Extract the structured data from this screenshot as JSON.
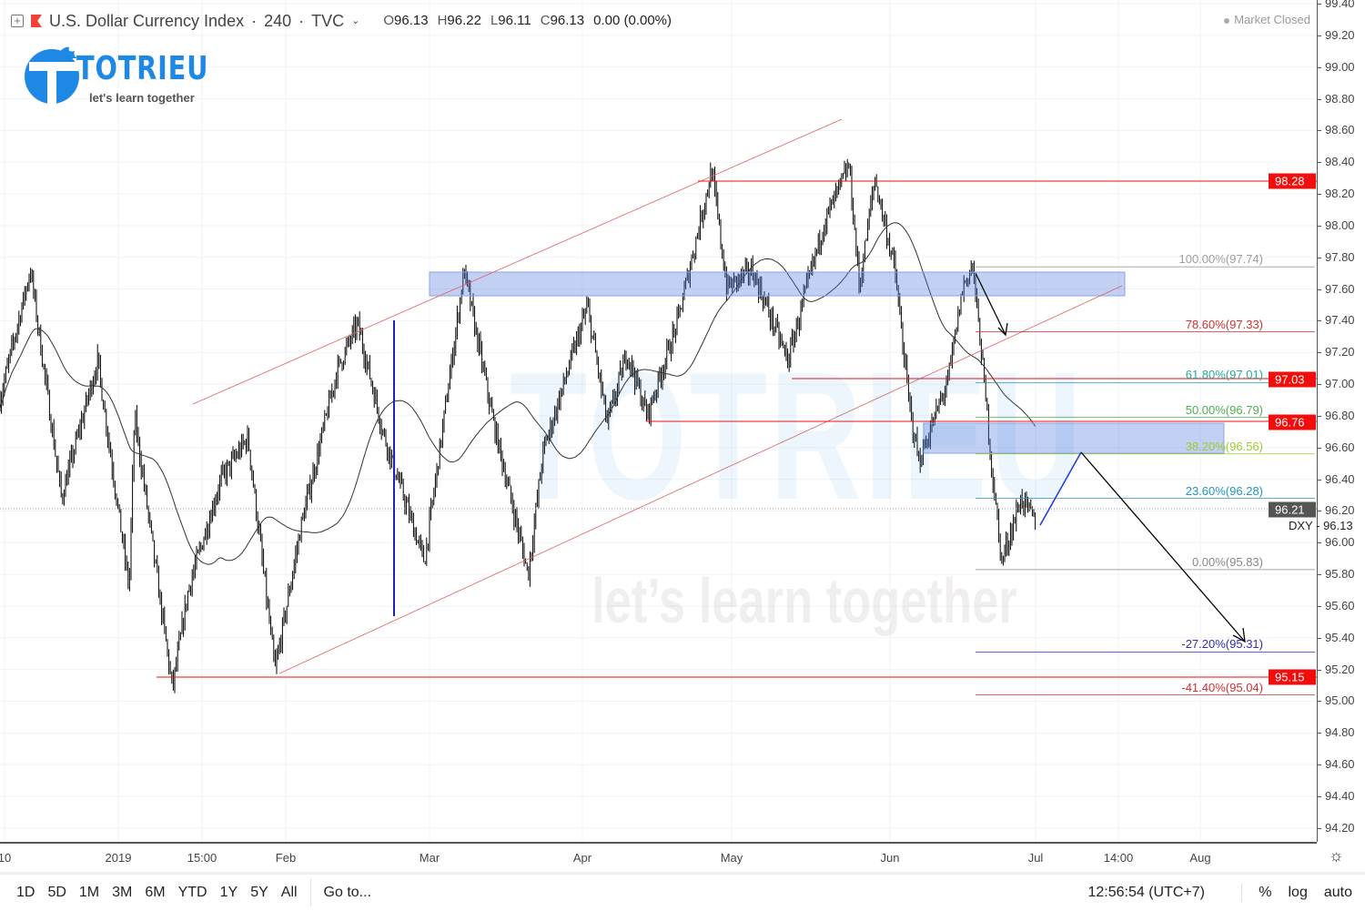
{
  "header": {
    "symbol": "U.S. Dollar Currency Index",
    "interval": "240",
    "exchange": "TVC",
    "dropdown_icon": "chevron-down-icon",
    "ohlc": {
      "o_label": "O",
      "o": "96.13",
      "h_label": "H",
      "h": "96.22",
      "l_label": "L",
      "l": "96.11",
      "c_label": "C",
      "c": "96.13",
      "change": "0.00 (0.00%)"
    }
  },
  "market_status": "Market Closed",
  "logo": {
    "brand": "TOTRIEU",
    "tagline": "let's learn together"
  },
  "watermark": {
    "brand": "TOTRIEU",
    "tagline": "let’s learn together"
  },
  "price_axis": {
    "ticks": [
      "99.40",
      "99.20",
      "99.00",
      "98.80",
      "98.60",
      "98.40",
      "98.20",
      "98.00",
      "97.80",
      "97.60",
      "97.40",
      "97.20",
      "97.00",
      "96.80",
      "96.60",
      "96.40",
      "96.20",
      "96.00",
      "95.80",
      "95.60",
      "95.40",
      "95.20",
      "95.00",
      "94.80",
      "94.60",
      "94.40",
      "94.20"
    ],
    "tags": [
      {
        "value": "98.28",
        "color": "#f20d0d"
      },
      {
        "value": "97.03",
        "color": "#f20d0d"
      },
      {
        "value": "96.76",
        "color": "#f20d0d"
      },
      {
        "value": "96.21",
        "color": "#555555"
      },
      {
        "value": "95.15",
        "color": "#f20d0d"
      }
    ],
    "symbol_label": "DXY",
    "last_price": "96.13"
  },
  "fib_levels": [
    {
      "label": "100.00%(97.74)",
      "price": 97.74,
      "color": "#9e9e9e"
    },
    {
      "label": "78.60%(97.33)",
      "price": 97.33,
      "color": "#d32f2f"
    },
    {
      "label": "61.80%(97.01)",
      "price": 97.01,
      "color": "#26a69a"
    },
    {
      "label": "50.00%(96.79)",
      "price": 96.79,
      "color": "#4caf50"
    },
    {
      "label": "38.20%(96.56)",
      "price": 96.56,
      "color": "#9ccc2e"
    },
    {
      "label": "23.60%(96.28)",
      "price": 96.28,
      "color": "#2196c4"
    },
    {
      "label": "0.00%(95.83)",
      "price": 95.83,
      "color": "#888888"
    },
    {
      "label": "-27.20%(95.31)",
      "price": 95.31,
      "color": "#2c2cb8"
    },
    {
      "label": "-41.40%(95.04)",
      "price": 95.04,
      "color": "#d32f2f"
    }
  ],
  "time_axis": [
    "10",
    "2019",
    "15:00",
    "Feb",
    "Mar",
    "Apr",
    "May",
    "Jun",
    "Jul",
    "14:00",
    "Aug"
  ],
  "bottom_bar": {
    "ranges": [
      "1D",
      "5D",
      "1M",
      "3M",
      "6M",
      "YTD",
      "1Y",
      "5Y",
      "All"
    ],
    "goto": "Go to...",
    "clock": "12:56:54 (UTC+7)",
    "percent": "%",
    "log": "log",
    "auto": "auto"
  },
  "colors": {
    "up_down_bar": "#000000",
    "support_resistance": "#f20d0d",
    "zone": "#6f93e0",
    "channel": "#e06060"
  },
  "chart_data": {
    "type": "candlestick",
    "symbol": "DXY",
    "price_range": [
      94.2,
      99.4
    ],
    "path": [
      [
        "2018-12-08",
        96.75
      ],
      [
        "2018-12-15",
        97.72
      ],
      [
        "2018-12-21",
        96.28
      ],
      [
        "2018-12-28",
        97.15
      ],
      [
        "2019-01-03",
        95.71
      ],
      [
        "2019-01-04",
        96.8
      ],
      [
        "2019-01-11",
        95.08
      ],
      [
        "2019-01-14",
        95.71
      ],
      [
        "2019-01-20",
        96.4
      ],
      [
        "2019-01-25",
        96.66
      ],
      [
        "2019-01-30",
        95.19
      ],
      [
        "2019-02-04",
        96.11
      ],
      [
        "2019-02-11",
        97.09
      ],
      [
        "2019-02-15",
        97.38
      ],
      [
        "2019-02-20",
        96.69
      ],
      [
        "2019-02-28",
        95.88
      ],
      [
        "2019-03-05",
        97.03
      ],
      [
        "2019-03-08",
        97.72
      ],
      [
        "2019-03-14",
        96.75
      ],
      [
        "2019-03-21",
        95.8
      ],
      [
        "2019-03-24",
        96.57
      ],
      [
        "2019-04-02",
        97.49
      ],
      [
        "2019-04-06",
        96.75
      ],
      [
        "2019-04-10",
        97.2
      ],
      [
        "2019-04-14",
        96.8
      ],
      [
        "2019-04-20",
        97.38
      ],
      [
        "2019-04-27",
        98.35
      ],
      [
        "2019-04-30",
        97.61
      ],
      [
        "2019-05-05",
        97.72
      ],
      [
        "2019-05-12",
        97.15
      ],
      [
        "2019-05-19",
        98.01
      ],
      [
        "2019-05-24",
        98.38
      ],
      [
        "2019-05-26",
        97.61
      ],
      [
        "2019-05-29",
        98.3
      ],
      [
        "2019-06-02",
        97.72
      ],
      [
        "2019-06-05",
        96.86
      ],
      [
        "2019-06-07",
        96.51
      ],
      [
        "2019-06-13",
        97.03
      ],
      [
        "2019-06-16",
        97.61
      ],
      [
        "2019-06-18",
        97.75
      ],
      [
        "2019-06-20",
        97.15
      ],
      [
        "2019-06-22",
        96.46
      ],
      [
        "2019-06-24",
        95.88
      ],
      [
        "2019-06-28",
        96.28
      ],
      [
        "2019-07-01",
        96.13
      ]
    ]
  }
}
